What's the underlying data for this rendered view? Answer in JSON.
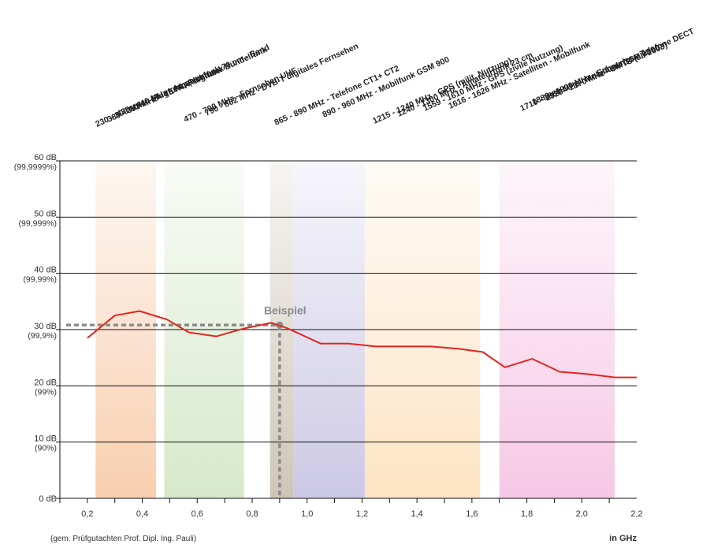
{
  "chart_data": {
    "type": "line",
    "xlabel": "in GHz",
    "ylabel": "",
    "xlim": [
      0.1,
      2.2
    ],
    "ylim": [
      0,
      60
    ],
    "grid": "horizontal",
    "source_note": "(gem. Prüfgutachten Prof. Dipl. Ing. Pauli)",
    "x_ticks": [
      "0,2",
      "0,4",
      "0,6",
      "0,8",
      "1,0",
      "1,2",
      "1,4",
      "1,6",
      "1,8",
      "2,0",
      "2,2"
    ],
    "y_ticks": [
      {
        "value": 0,
        "db": "0 dB",
        "pct": ""
      },
      {
        "value": 10,
        "db": "10 dB",
        "pct": "(90%)"
      },
      {
        "value": 20,
        "db": "20 dB",
        "pct": "(99%)"
      },
      {
        "value": 30,
        "db": "30 dB",
        "pct": "(99,9%)"
      },
      {
        "value": 40,
        "db": "40 dB",
        "pct": "(99,99%)"
      },
      {
        "value": 50,
        "db": "50 dB",
        "pct": "(99,999%)"
      },
      {
        "value": 60,
        "db": "60 dB",
        "pct": "(99,9999%)"
      }
    ],
    "series": [
      {
        "color": "#e32420",
        "x": [
          0.2,
          0.3,
          0.39,
          0.49,
          0.57,
          0.67,
          0.77,
          0.87,
          0.93,
          1.05,
          1.15,
          1.25,
          1.35,
          1.45,
          1.55,
          1.64,
          1.72,
          1.82,
          1.92,
          2.02,
          2.12,
          2.2
        ],
        "y": [
          28.5,
          32.5,
          33.3,
          31.8,
          29.5,
          28.8,
          30.2,
          31.2,
          30.2,
          27.5,
          27.5,
          27.0,
          27.0,
          27.0,
          26.6,
          26.0,
          23.3,
          24.8,
          22.5,
          22.1,
          21.5,
          21.5
        ]
      }
    ],
    "bands": [
      {
        "from": 0.23,
        "to": 0.45,
        "color": "#f7c9a6"
      },
      {
        "from": 0.48,
        "to": 0.77,
        "color": "#d2e6c4"
      },
      {
        "from": 0.865,
        "to": 0.95,
        "color": "#c9bfae"
      },
      {
        "from": 0.95,
        "to": 1.21,
        "color": "#c6c2e2"
      },
      {
        "from": 1.21,
        "to": 1.63,
        "color": "#fde1bd"
      },
      {
        "from": 1.7,
        "to": 2.12,
        "color": "#f5c2e2"
      }
    ],
    "example": {
      "label": "Beispiel",
      "x": 0.9,
      "y": 30.8,
      "color": "#8c8c8c"
    },
    "band_labels": [
      "230 - 300 MHz - Flugfunk, Richtfunk",
      "380 - 393 MHz - TETRA, digitaler Bündelfunk",
      "430 - 440 MHz - Amateurfunk 70 cm - Band",
      "470 - 790 MHz - Fernsehen UHF",
      "790 - 862 MHz - DVB-T digitales Fernsehen",
      "865 - 890 MHz - Telefone CT1+ CT2",
      "890 - 960 MHz - Mobilfunk GSM 900",
      "1215 - 1240 MHz - GPS (milit. Nutzung)",
      "1240 - 1300 MHz - Amateurfunk 23 cm",
      "1559 - 1610 MHz - GPS (zivile Nutzung)",
      "1616 - 1626 MHz - Satelliten - Mobilfunk",
      "1710 - 1880 MHz - Mobilfunk GSM 1800",
      "1880 - 1900 MHz - Schnurlose Telefone DECT",
      "1920 - 2170 MHz - UMTS (ab 2003)"
    ]
  }
}
